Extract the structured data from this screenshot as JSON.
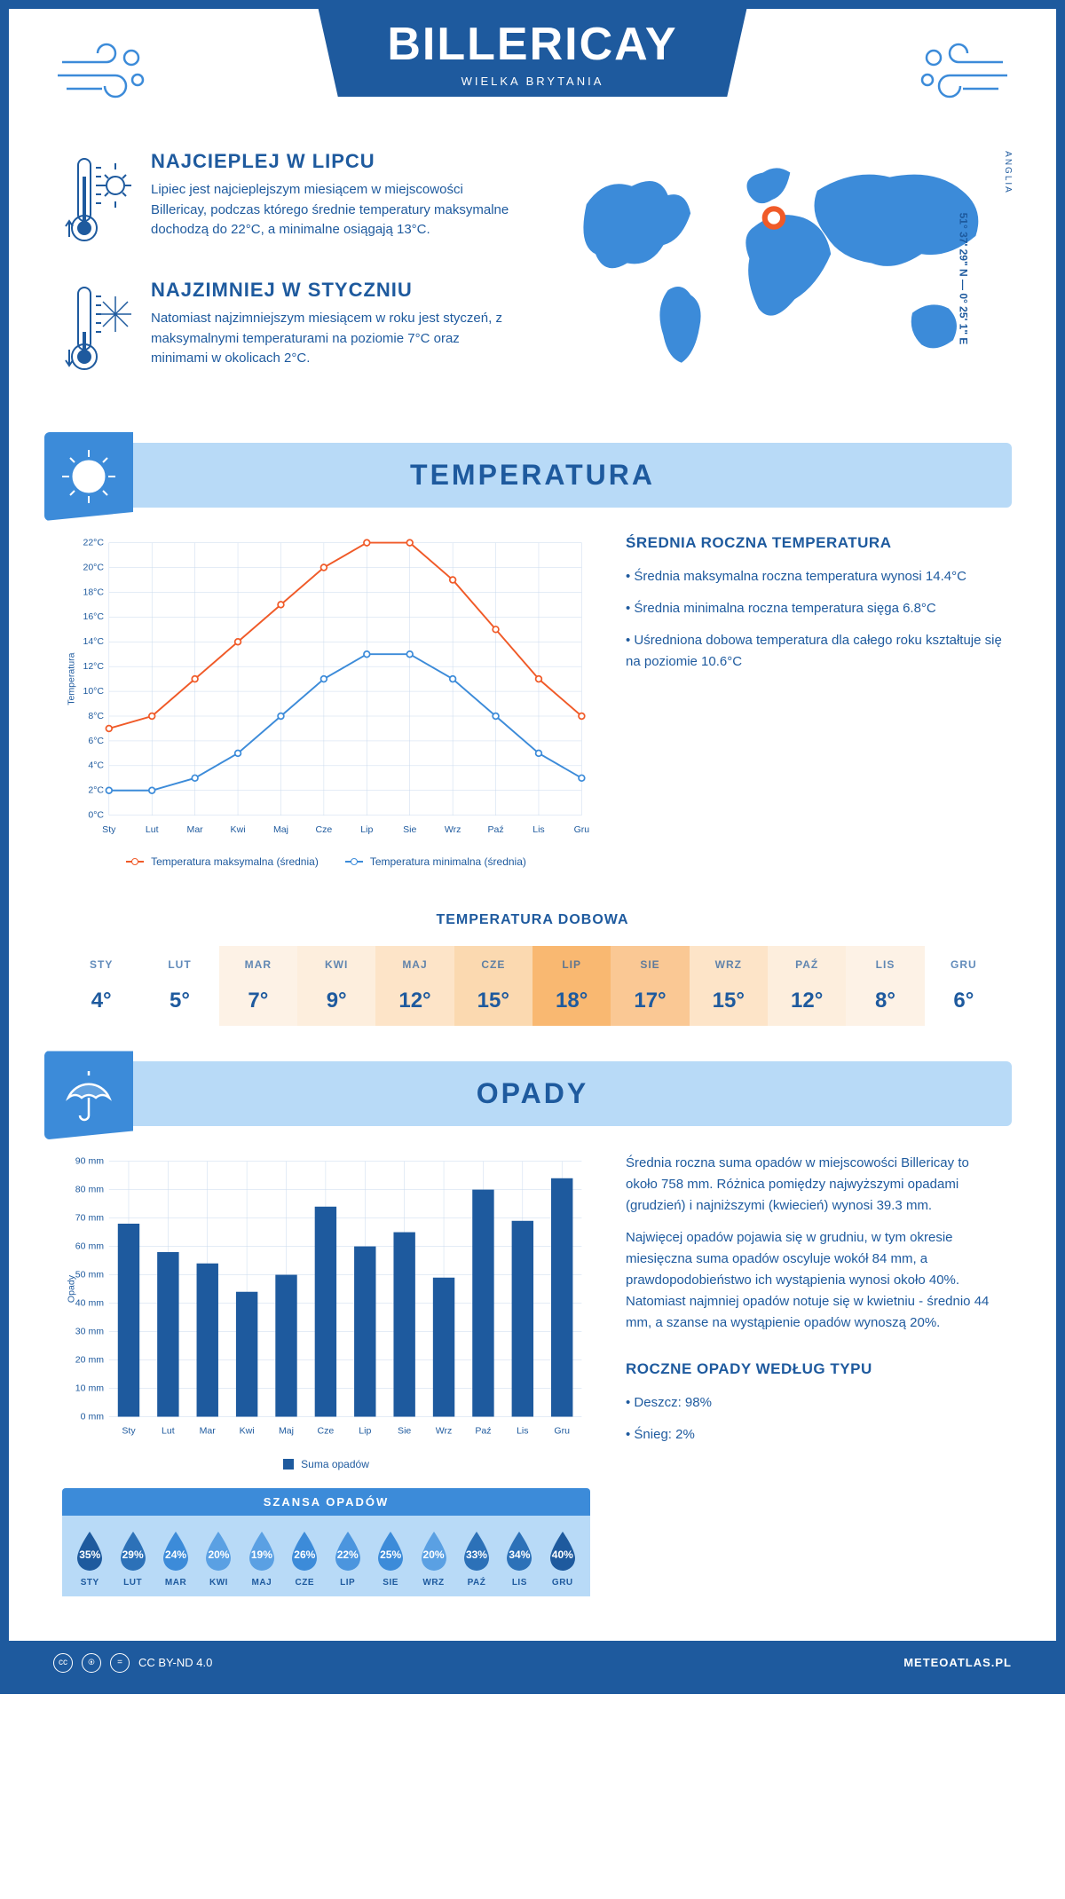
{
  "header": {
    "city": "BILLERICAY",
    "country": "WIELKA BRYTANIA"
  },
  "intro": {
    "hot": {
      "title": "NAJCIEPLEJ W LIPCU",
      "text": "Lipiec jest najcieplejszym miesiącem w miejscowości Billericay, podczas którego średnie temperatury maksymalne dochodzą do 22°C, a minimalne osiągają 13°C."
    },
    "cold": {
      "title": "NAJZIMNIEJ W STYCZNIU",
      "text": "Natomiast najzimniejszym miesiącem w roku jest styczeń, z maksymalnymi temperaturami na poziomie 7°C oraz minimami w okolicach 2°C."
    },
    "coords": "51° 37' 29\" N — 0° 25' 1\" E",
    "region": "ANGLIA"
  },
  "temperature": {
    "section_title": "TEMPERATURA",
    "months": [
      "Sty",
      "Lut",
      "Mar",
      "Kwi",
      "Maj",
      "Cze",
      "Lip",
      "Sie",
      "Wrz",
      "Paź",
      "Lis",
      "Gru"
    ],
    "max_series": [
      7,
      8,
      11,
      14,
      17,
      20,
      22,
      22,
      19,
      15,
      11,
      8
    ],
    "min_series": [
      2,
      2,
      3,
      5,
      8,
      11,
      13,
      13,
      11,
      8,
      5,
      3
    ],
    "ylim": [
      0,
      22
    ],
    "ytick_step": 2,
    "ylabel": "Temperatura",
    "max_color": "#f05a28",
    "min_color": "#3c8bd9",
    "grid_color": "#c8d8ed",
    "background": "#ffffff",
    "legend": {
      "max": "Temperatura maksymalna (średnia)",
      "min": "Temperatura minimalna (średnia)"
    },
    "stats_title": "ŚREDNIA ROCZNA TEMPERATURA",
    "stats": [
      "Średnia maksymalna roczna temperatura wynosi 14.4°C",
      "Średnia minimalna roczna temperatura sięga 6.8°C",
      "Uśredniona dobowa temperatura dla całego roku kształtuje się na poziomie 10.6°C"
    ]
  },
  "daily_temp": {
    "title": "TEMPERATURA DOBOWA",
    "months": [
      "STY",
      "LUT",
      "MAR",
      "KWI",
      "MAJ",
      "CZE",
      "LIP",
      "SIE",
      "WRZ",
      "PAŹ",
      "LIS",
      "GRU"
    ],
    "values": [
      "4°",
      "5°",
      "7°",
      "9°",
      "12°",
      "15°",
      "18°",
      "17°",
      "15°",
      "12°",
      "8°",
      "6°"
    ],
    "bg_colors": [
      "#ffffff",
      "#ffffff",
      "#fdf2e6",
      "#fdeedd",
      "#fde4c8",
      "#fbd9b0",
      "#f9b871",
      "#fac894",
      "#fde4c8",
      "#fdeedd",
      "#fdf2e6",
      "#ffffff"
    ]
  },
  "precipitation": {
    "section_title": "OPADY",
    "months": [
      "Sty",
      "Lut",
      "Mar",
      "Kwi",
      "Maj",
      "Cze",
      "Lip",
      "Sie",
      "Wrz",
      "Paź",
      "Lis",
      "Gru"
    ],
    "values": [
      68,
      58,
      54,
      44,
      50,
      74,
      60,
      65,
      49,
      80,
      69,
      84
    ],
    "ylim": [
      0,
      90
    ],
    "ytick_step": 10,
    "ylabel": "Opady",
    "unit": "mm",
    "bar_color": "#1e5a9e",
    "grid_color": "#c8d8ed",
    "legend": "Suma opadów",
    "text1": "Średnia roczna suma opadów w miejscowości Billericay to około 758 mm. Różnica pomiędzy najwyższymi opadami (grudzień) i najniższymi (kwiecień) wynosi 39.3 mm.",
    "text2": "Najwięcej opadów pojawia się w grudniu, w tym okresie miesięczna suma opadów oscyluje wokół 84 mm, a prawdopodobieństwo ich wystąpienia wynosi około 40%. Natomiast najmniej opadów notuje się w kwietniu - średnio 44 mm, a szanse na wystąpienie opadów wynoszą 20%.",
    "by_type_title": "ROCZNE OPADY WEDŁUG TYPU",
    "by_type": [
      "Deszcz: 98%",
      "Śnieg: 2%"
    ]
  },
  "rain_chance": {
    "title": "SZANSA OPADÓW",
    "months": [
      "STY",
      "LUT",
      "MAR",
      "KWI",
      "MAJ",
      "CZE",
      "LIP",
      "SIE",
      "WRZ",
      "PAŹ",
      "LIS",
      "GRU"
    ],
    "pct": [
      "35%",
      "29%",
      "24%",
      "20%",
      "19%",
      "26%",
      "22%",
      "25%",
      "20%",
      "33%",
      "34%",
      "40%"
    ],
    "drop_colors": [
      "#1e5a9e",
      "#2c71b8",
      "#3c8bd9",
      "#5aa0e3",
      "#5aa0e3",
      "#3c8bd9",
      "#4b95de",
      "#3c8bd9",
      "#5aa0e3",
      "#2c71b8",
      "#2c71b8",
      "#1e5a9e"
    ]
  },
  "footer": {
    "license": "CC BY-ND 4.0",
    "brand": "METEOATLAS.PL"
  }
}
